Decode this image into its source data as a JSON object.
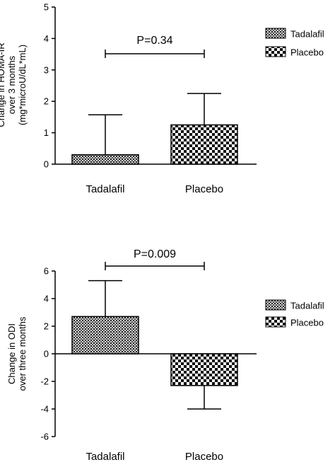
{
  "chart_data": [
    {
      "type": "bar",
      "categories": [
        "Tadalafil",
        "Placebo"
      ],
      "values": [
        0.3,
        1.25
      ],
      "error_upper": [
        1.57,
        2.25
      ],
      "ylabel_lines": [
        "Change in HOMA-IR",
        "over 3 months",
        "(mg*microU/dL*mL)"
      ],
      "ylim": [
        0,
        5
      ],
      "yticks": [
        0,
        1,
        2,
        3,
        4,
        5
      ],
      "annotation": "P=0.34",
      "legend": [
        "Tadalafil",
        "Placebo"
      ],
      "legend_position": "right"
    },
    {
      "type": "bar",
      "categories": [
        "Tadalafil",
        "Placebo"
      ],
      "values": [
        2.7,
        -2.3
      ],
      "error_upper": [
        5.3,
        -4.0
      ],
      "ylabel_lines": [
        "Change in ODI",
        "over three months"
      ],
      "ylim": [
        -6,
        6
      ],
      "yticks": [
        -6,
        -4,
        -2,
        0,
        2,
        4,
        6
      ],
      "annotation": "P=0.009",
      "legend": [
        "Tadalafil",
        "Placebo"
      ],
      "legend_position": "right"
    }
  ]
}
